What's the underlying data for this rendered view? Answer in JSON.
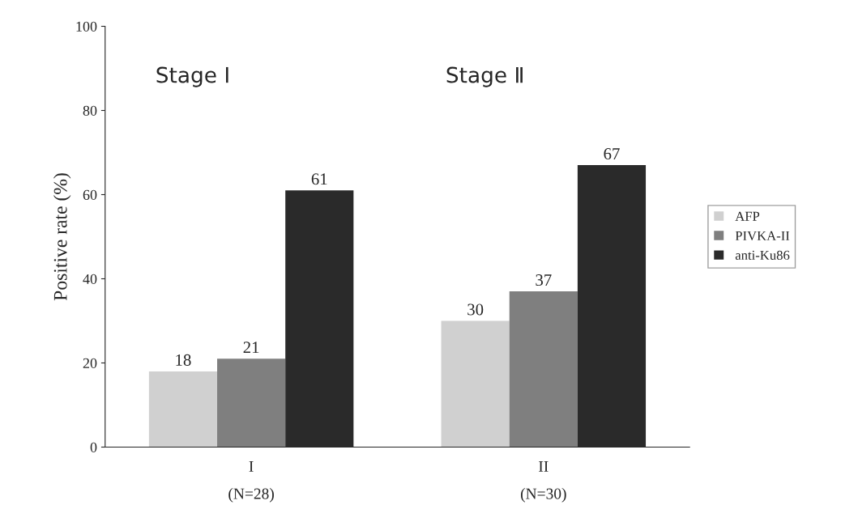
{
  "chart_data": {
    "type": "bar",
    "categories": [
      "I\n(N=28)",
      "II\n(N=30)"
    ],
    "series": [
      {
        "name": "AFP",
        "color": "#d0d0d0",
        "values": [
          18,
          30
        ]
      },
      {
        "name": "PIVKA-II",
        "color": "#7f7f7f",
        "values": [
          21,
          37
        ]
      },
      {
        "name": "anti-Ku86",
        "color": "#2a2a2a",
        "values": [
          61,
          67
        ]
      }
    ],
    "ylabel": "Positive rate (%)",
    "annotations": [
      "Stage Ⅰ",
      "Stage Ⅱ"
    ],
    "ylim": [
      0,
      100
    ],
    "yticks": [
      0,
      20,
      40,
      60,
      80,
      100
    ],
    "data_labels": true,
    "grid": false,
    "legend": "right"
  }
}
